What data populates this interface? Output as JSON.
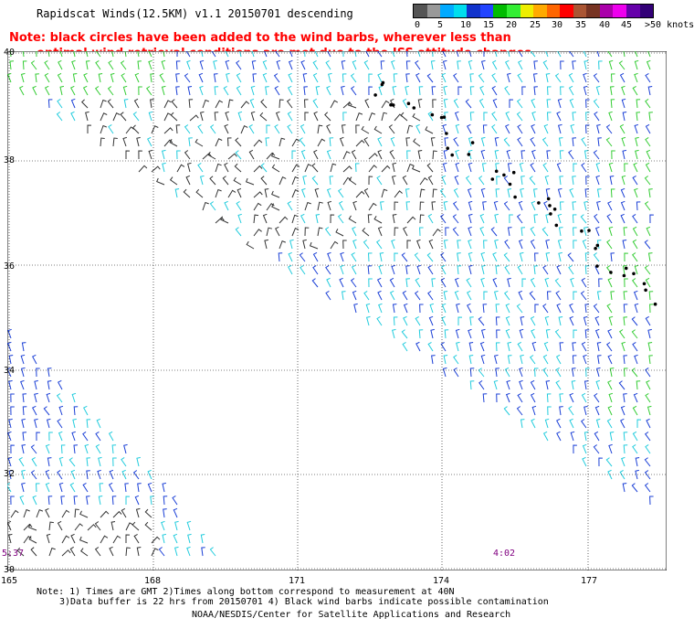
{
  "title": "Rapidscat Winds(12.5KM) v1.1 20150701 descending",
  "note_line1": "Note: black circles have been added to the wind barbs, wherever less than",
  "note_line2": "optimal wind retrieval conditions are met due to the ISS attitude changes.",
  "legend": {
    "labels": [
      "0",
      "5",
      "10",
      "15",
      "20",
      "25",
      "30",
      "35",
      "40",
      "45",
      ">50 knots"
    ],
    "colors": [
      "#555555",
      "#999999",
      "#00aaff",
      "#00ddee",
      "#1133cc",
      "#2244ff",
      "#00bb00",
      "#33ee33",
      "#eeee00",
      "#ffaa00",
      "#ff6600",
      "#ff0000",
      "#aa5533",
      "#773322",
      "#aa00aa",
      "#ee00ee",
      "#6600aa",
      "#330077"
    ]
  },
  "axes": {
    "lat_ticks": [
      "40",
      "38",
      "36",
      "34",
      "32",
      "30"
    ],
    "lon_ticks": [
      "165",
      "168",
      "171",
      "174",
      "177"
    ]
  },
  "times": {
    "left": "5:37",
    "right": "4:02"
  },
  "footer": {
    "line1": "Note: 1) Times are GMT 2)Times along bottom correspond to measurement at 40N",
    "line2": "3)Data buffer is 22 hrs from 20150701 4) Black wind barbs indicate possible contamination",
    "line3": "NOAA/NESDIS/Center for Satellite Applications and Research"
  }
}
